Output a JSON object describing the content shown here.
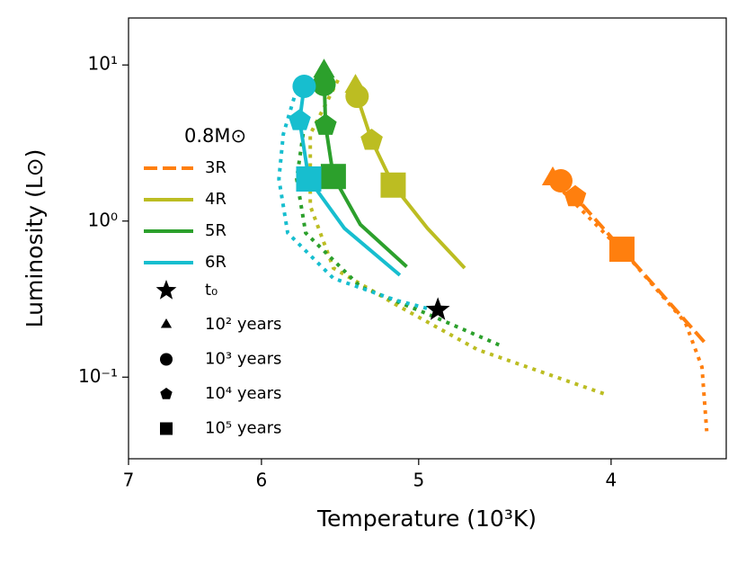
{
  "chart_data": {
    "type": "line",
    "x_label": "Temperature (10³K)",
    "y_label": "Luminosity (L⊙)",
    "xscale": "log",
    "yscale": "log",
    "xlim": [
      7,
      3.5
    ],
    "ylim": [
      0.03,
      20
    ],
    "xticks": [
      7,
      6,
      5,
      4
    ],
    "yticks": [
      {
        "value": 0.1,
        "label": "10⁻¹"
      },
      {
        "value": 1,
        "label": "10⁰"
      },
      {
        "value": 10,
        "label": "10¹"
      }
    ],
    "legend_title": "0.8M⊙",
    "series": [
      {
        "name": "3R",
        "color": "#ff7f0e",
        "style": "dashed",
        "x": [
          4.27,
          4.17,
          3.95,
          3.59
        ],
        "y": [
          1.86,
          1.43,
          0.66,
          0.168
        ],
        "dotted_x": [
          4.29,
          3.91,
          3.67,
          3.6,
          3.58
        ],
        "dotted_y": [
          1.86,
          0.567,
          0.224,
          0.116,
          0.045
        ],
        "marker_x": [
          4.28,
          4.24,
          4.17,
          3.95
        ],
        "marker_y": [
          1.86,
          1.81,
          1.43,
          0.66
        ]
      },
      {
        "name": "4R",
        "color": "#bcbd22",
        "style": "solid",
        "x": [
          5.38,
          5.37,
          5.28,
          5.15,
          4.95,
          4.74
        ],
        "y": [
          7.8,
          6.3,
          3.29,
          1.7,
          0.9,
          0.5
        ],
        "dotted_x": [
          5.49,
          5.67,
          5.67,
          5.52,
          5.13,
          4.67,
          4.03
        ],
        "dotted_y": [
          8.0,
          3.6,
          1.25,
          0.5,
          0.29,
          0.15,
          0.078
        ],
        "marker_x": [
          5.38,
          5.37,
          5.28,
          5.15
        ],
        "marker_y": [
          7.29,
          6.3,
          3.29,
          1.7
        ]
      },
      {
        "name": "5R",
        "color": "#2ca02c",
        "style": "solid",
        "x": [
          5.58,
          5.57,
          5.52,
          5.35,
          5.07
        ],
        "y": [
          9.1,
          4.1,
          1.93,
          0.95,
          0.51
        ],
        "dotted_x": [
          5.7,
          5.76,
          5.7,
          5.35,
          4.97,
          4.55
        ],
        "dotted_y": [
          4.7,
          1.86,
          0.84,
          0.38,
          0.26,
          0.16
        ],
        "marker_x": [
          5.58,
          5.58,
          5.57,
          5.52
        ],
        "marker_y": [
          9.1,
          7.5,
          4.1,
          1.93
        ]
      },
      {
        "name": "6R",
        "color": "#17becf",
        "style": "solid",
        "x": [
          5.71,
          5.74,
          5.68,
          5.45,
          5.11
        ],
        "y": [
          7.3,
          4.4,
          1.86,
          0.9,
          0.45
        ],
        "dotted_x": [
          5.76,
          5.85,
          5.88,
          5.82,
          5.52,
          5.13,
          4.92
        ],
        "dotted_y": [
          7.0,
          3.6,
          1.86,
          0.84,
          0.43,
          0.31,
          0.27
        ],
        "marker_x": [
          null,
          5.71,
          5.74,
          5.68
        ],
        "marker_y": [
          null,
          7.3,
          4.4,
          1.86
        ]
      }
    ],
    "t0": {
      "label": "t₀",
      "x": 4.89,
      "y": 0.27
    },
    "markers": [
      {
        "label": "10² years",
        "shape": "triangle"
      },
      {
        "label": "10³ years",
        "shape": "circle"
      },
      {
        "label": "10⁴ years",
        "shape": "pentagon"
      },
      {
        "label": "10⁵ years",
        "shape": "square"
      }
    ]
  }
}
